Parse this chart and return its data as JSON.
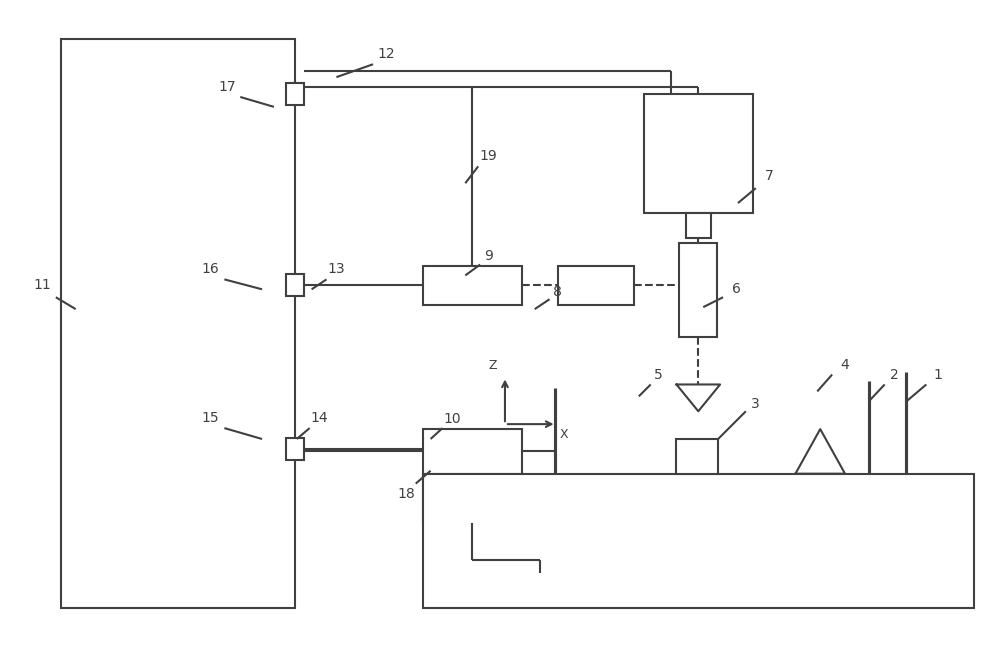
{
  "bg_color": "#ffffff",
  "line_color": "#404040",
  "label_color": "#404040",
  "lw": 1.5,
  "fig_width": 10.0,
  "fig_height": 6.47
}
